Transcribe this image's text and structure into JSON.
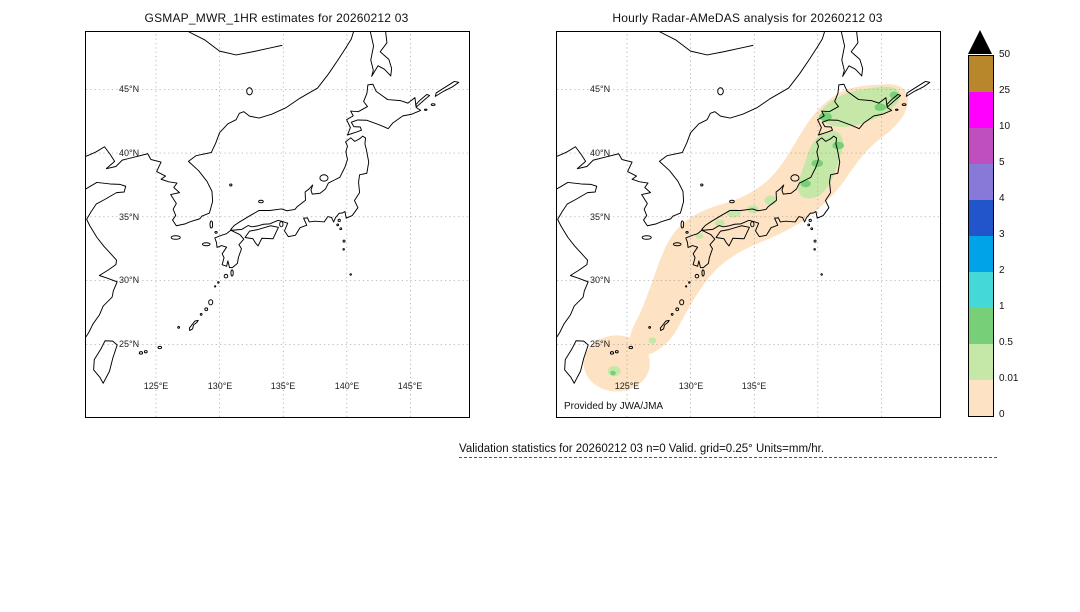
{
  "panels": {
    "left": {
      "title": "GSMAP_MWR_1HR estimates for 20260212 03",
      "lat_labels": [
        "45°N",
        "40°N",
        "35°N",
        "30°N",
        "25°N"
      ],
      "lon_labels": [
        "125°E",
        "130°E",
        "135°E",
        "140°E",
        "145°E"
      ]
    },
    "right": {
      "title": "Hourly Radar-AMeDAS analysis for 20260212 03",
      "lat_labels": [
        "45°N",
        "40°N",
        "35°N",
        "30°N",
        "25°N"
      ],
      "lon_labels": [
        "125°E",
        "130°E",
        "135°E"
      ],
      "credit": "Provided by JWA/JMA"
    }
  },
  "colorbar": {
    "tick_labels": [
      "50",
      "25",
      "10",
      "5",
      "4",
      "3",
      "2",
      "1",
      "0.5",
      "0.01",
      "0"
    ],
    "band_colors": [
      "#b8872b",
      "#ff00ff",
      "#bf4fbf",
      "#8878d8",
      "#2255cc",
      "#00a2e8",
      "#45d8d8",
      "#77d077",
      "#c5e8a8",
      "#fde2c4"
    ],
    "overflow_color": "#000000"
  },
  "footer": {
    "validation_text": "Validation statistics for 20260212 03  n=0 Valid. grid=0.25° Units=mm/hr."
  }
}
